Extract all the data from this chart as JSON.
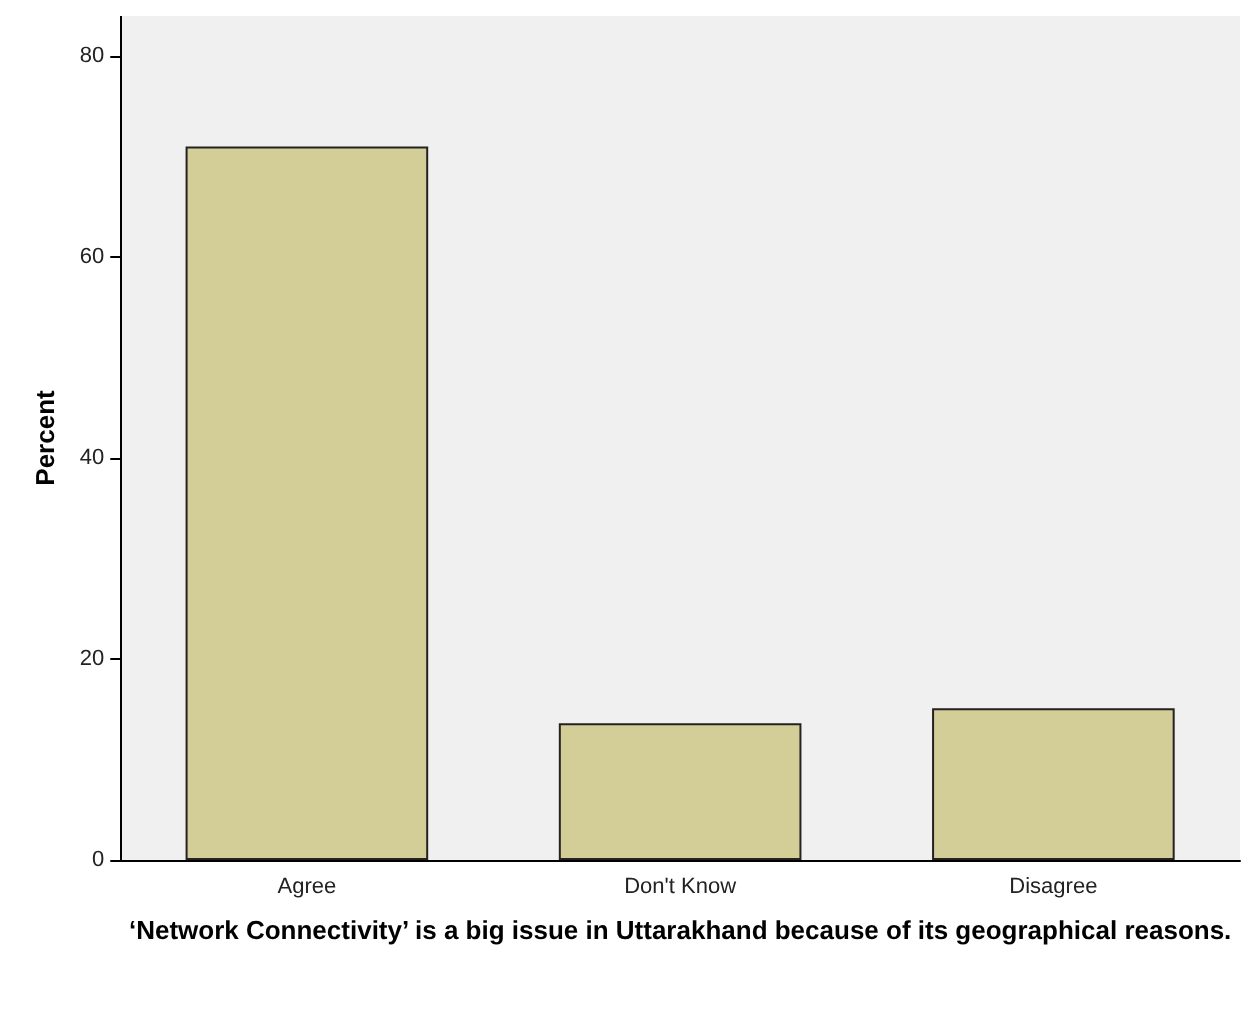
{
  "chart_data": {
    "type": "bar",
    "xlabel": "‘Network Connectivity’ is a big issue in Uttarakhand because of its geographical reasons.",
    "ylabel": "Percent",
    "categories": [
      "Agree",
      "Don't Know",
      "Disagree"
    ],
    "values": [
      71,
      13.6,
      15.1
    ],
    "color": "#d3ce97",
    "ylim": [
      0,
      84
    ],
    "yticks": [
      0,
      20,
      40,
      60,
      80
    ],
    "grid": false
  }
}
